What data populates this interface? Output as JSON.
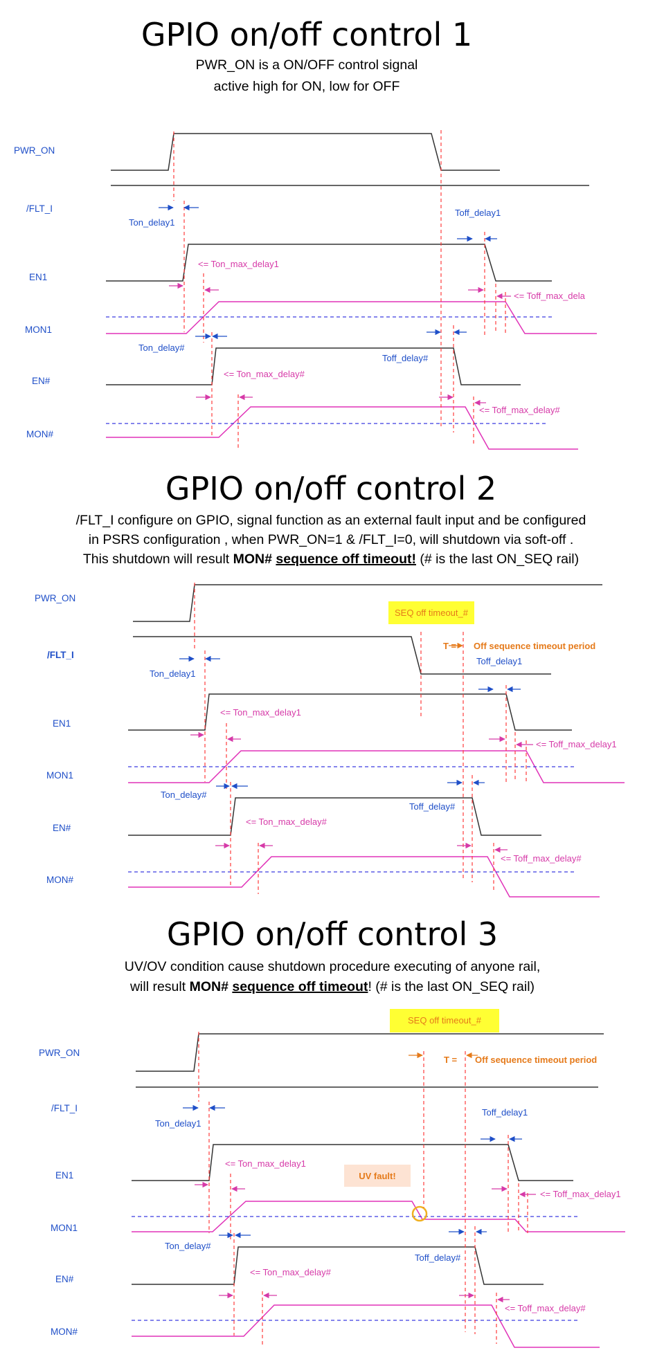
{
  "sections": [
    {
      "title": "GPIO on/off control 1",
      "subtitle": [
        "PWR_ON is a ON/OFF control signal",
        "active high for ON, low for OFF"
      ]
    },
    {
      "title": "GPIO on/off control 2",
      "subtitle_line1": "/FLT_I configure on GPIO, signal function as an external fault input and be configured",
      "subtitle_line2": "in PSRS configuration , when PWR_ON=1 & /FLT_I=0, will shutdown via soft-off .",
      "subtitle_line3_pre": "This shutdown will result ",
      "subtitle_line3_b1": "MON#",
      "subtitle_line3_b2": "sequence off timeout!",
      "subtitle_line3_post": " (# is the last ON_SEQ rail)"
    },
    {
      "title": "GPIO on/off control 3",
      "subtitle_line1": "UV/OV condition cause shutdown procedure executing of anyone  rail,",
      "subtitle_line2_pre": "will result ",
      "subtitle_line2_b1": "MON#",
      "subtitle_line2_b2": "sequence off timeout",
      "subtitle_line2_post": "! (# is the last ON_SEQ rail)"
    }
  ],
  "signals": {
    "pwr_on": "PWR_ON",
    "flt_i": "/FLT_I",
    "en1": "EN1",
    "mon1": "MON1",
    "en_n": "EN#",
    "mon_n": "MON#"
  },
  "annotations": {
    "ton_delay1": "Ton_delay1",
    "ton_max_delay1": "<= Ton_max_delay1",
    "ton_delay_n": "Ton_delay#",
    "ton_max_delay_n": "<= Ton_max_delay#",
    "toff_delay1": "Toff_delay1",
    "toff_max_delay1": "<= Toff_max_delay1",
    "toff_max_delay1_clipped": "<= Toff_max_dela",
    "toff_delay_n": "Toff_delay#",
    "toff_max_delay_n": "<= Toff_max_delay#",
    "seq_off_timeout": "SEQ off timeout_#",
    "t_equals": "T =",
    "off_seq_timeout_period": "Off sequence timeout period",
    "uv_fault": "UV fault!"
  },
  "colors": {
    "signal_black": "#333333",
    "mon_magenta": "#e032b8",
    "threshold_blue": "#3a3ae0",
    "marker_red": "#ff3b3b",
    "arrow_blue": "#1f4fc8",
    "arrow_magenta": "#d63aa8",
    "highlight_yellow": "#ffff33",
    "fault_box": "#fde3d3",
    "fault_ring": "#f0b020"
  }
}
